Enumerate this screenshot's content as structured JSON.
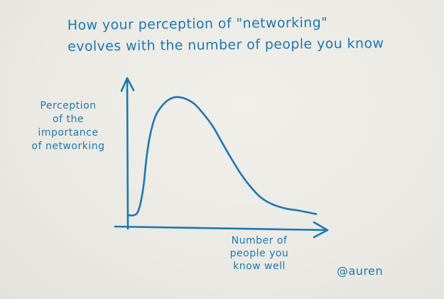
{
  "chart_data": {
    "type": "line",
    "title_lines": [
      "How your perception of \"networking\"",
      "evolves with the number of people you know"
    ],
    "ylabel_lines": [
      "Perception",
      "of the",
      "importance",
      "of networking"
    ],
    "xlabel_lines": [
      "Number of",
      "people you",
      "know well"
    ],
    "xlim": [
      0,
      100
    ],
    "ylim": [
      0,
      100
    ],
    "series": [
      {
        "x": [
          0,
          5,
          8,
          10,
          12,
          15,
          20,
          25,
          30,
          35,
          40,
          45,
          50,
          55,
          60,
          65,
          70,
          75,
          80,
          85,
          90,
          100
        ],
        "y": [
          5,
          7,
          25,
          52,
          70,
          85,
          95,
          99,
          98,
          94,
          86,
          76,
          63,
          50,
          38,
          28,
          20,
          15,
          12,
          10,
          9,
          6
        ]
      }
    ],
    "grid": false,
    "legend": false
  },
  "signature": "@auren",
  "colors": {
    "ink": "#1c78b0",
    "paper": "#ebe9e4"
  }
}
